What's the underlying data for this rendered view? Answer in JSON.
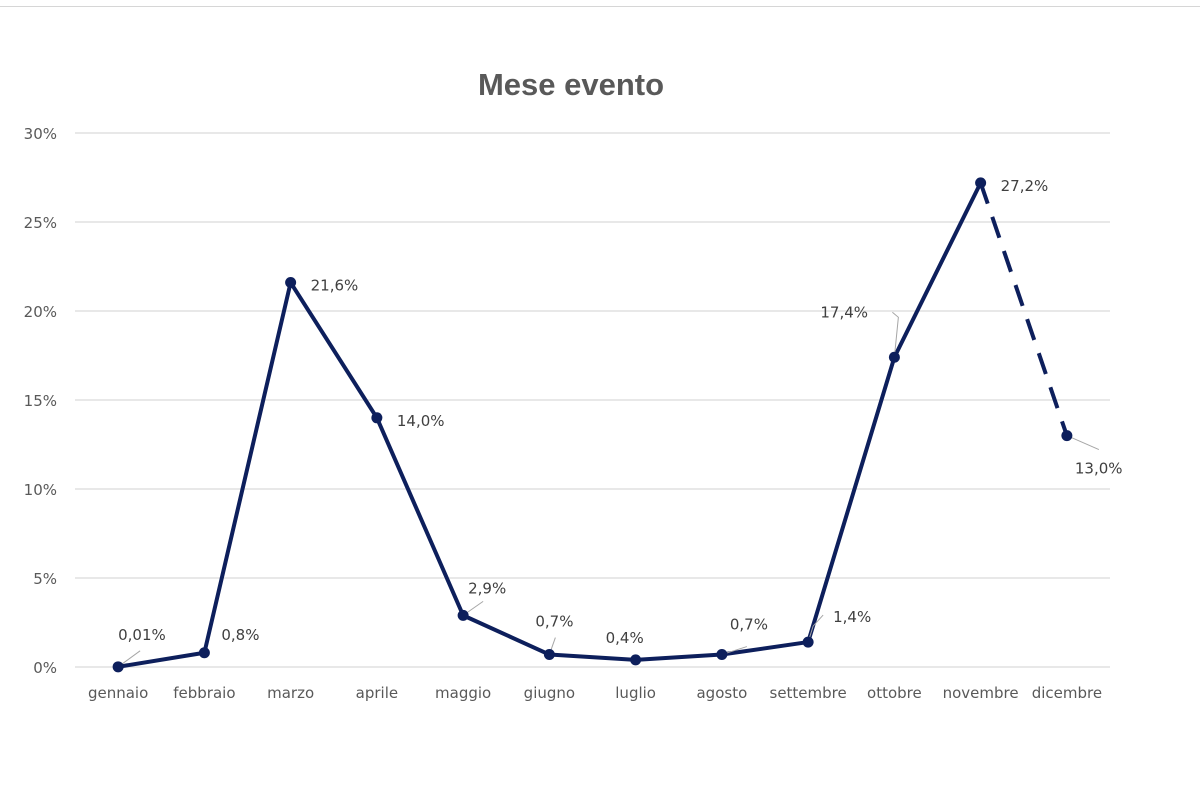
{
  "chart_data": {
    "type": "line",
    "title": "Mese evento",
    "categories": [
      "gennaio",
      "febbraio",
      "marzo",
      "aprile",
      "maggio",
      "giugno",
      "luglio",
      "agosto",
      "settembre",
      "ottobre",
      "novembre",
      "dicembre"
    ],
    "series": [
      {
        "values": [
          0.01,
          0.8,
          21.6,
          14.0,
          2.9,
          0.7,
          0.4,
          0.7,
          1.4,
          17.4,
          27.2,
          13.0
        ],
        "labels": [
          "0,01%",
          "0,8%",
          "21,6%",
          "14,0%",
          "2,9%",
          "0,7%",
          "0,4%",
          "0,7%",
          "1,4%",
          "17,4%",
          "27,2%",
          "13,0%"
        ],
        "color": "#0d1f5c",
        "dashed_last_segment": true
      }
    ],
    "yticks": [
      "0%",
      "5%",
      "10%",
      "15%",
      "20%",
      "25%",
      "30%"
    ],
    "ylim": [
      0,
      30
    ],
    "grid": true,
    "legend": "none",
    "xlabel": "",
    "ylabel": ""
  }
}
